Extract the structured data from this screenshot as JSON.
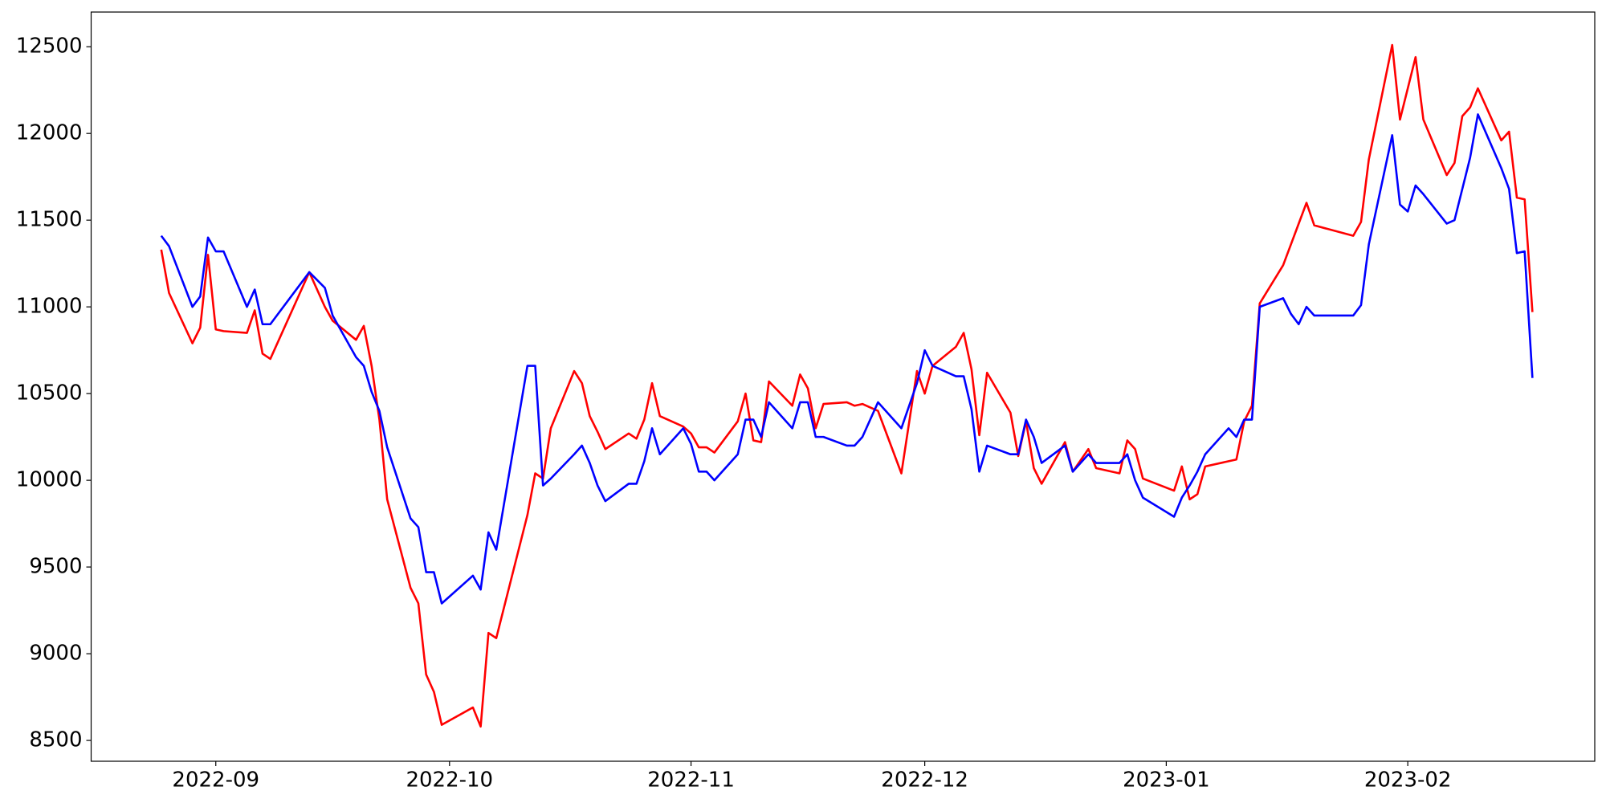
{
  "chart_data": {
    "type": "line",
    "x": [
      "2022-08-25",
      "2022-08-26",
      "2022-08-29",
      "2022-08-30",
      "2022-08-31",
      "2022-09-01",
      "2022-09-02",
      "2022-09-05",
      "2022-09-06",
      "2022-09-07",
      "2022-09-08",
      "2022-09-13",
      "2022-09-15",
      "2022-09-16",
      "2022-09-19",
      "2022-09-20",
      "2022-09-21",
      "2022-09-22",
      "2022-09-23",
      "2022-09-26",
      "2022-09-27",
      "2022-09-28",
      "2022-09-29",
      "2022-09-30",
      "2022-10-04",
      "2022-10-05",
      "2022-10-06",
      "2022-10-07",
      "2022-10-11",
      "2022-10-12",
      "2022-10-13",
      "2022-10-14",
      "2022-10-17",
      "2022-10-18",
      "2022-10-19",
      "2022-10-20",
      "2022-10-21",
      "2022-10-24",
      "2022-10-25",
      "2022-10-26",
      "2022-10-27",
      "2022-10-28",
      "2022-10-31",
      "2022-11-01",
      "2022-11-02",
      "2022-11-03",
      "2022-11-04",
      "2022-11-07",
      "2022-11-08",
      "2022-11-09",
      "2022-11-10",
      "2022-11-11",
      "2022-11-14",
      "2022-11-15",
      "2022-11-16",
      "2022-11-17",
      "2022-11-18",
      "2022-11-21",
      "2022-11-22",
      "2022-11-23",
      "2022-11-25",
      "2022-11-28",
      "2022-11-30",
      "2022-12-01",
      "2022-12-02",
      "2022-12-05",
      "2022-12-06",
      "2022-12-07",
      "2022-12-08",
      "2022-12-09",
      "2022-12-12",
      "2022-12-13",
      "2022-12-14",
      "2022-12-15",
      "2022-12-16",
      "2022-12-19",
      "2022-12-20",
      "2022-12-22",
      "2022-12-23",
      "2022-12-26",
      "2022-12-27",
      "2022-12-28",
      "2022-12-29",
      "2023-01-02",
      "2023-01-03",
      "2023-01-04",
      "2023-01-05",
      "2023-01-06",
      "2023-01-09",
      "2023-01-10",
      "2023-01-11",
      "2023-01-12",
      "2023-01-13",
      "2023-01-16",
      "2023-01-17",
      "2023-01-18",
      "2023-01-19",
      "2023-01-20",
      "2023-01-25",
      "2023-01-26",
      "2023-01-27",
      "2023-01-30",
      "2023-01-31",
      "2023-02-01",
      "2023-02-02",
      "2023-02-03",
      "2023-02-06",
      "2023-02-07",
      "2023-02-08",
      "2023-02-09",
      "2023-02-10",
      "2023-02-13",
      "2023-02-14",
      "2023-02-15",
      "2023-02-16",
      "2023-02-17"
    ],
    "series": [
      {
        "color": "#ff0000",
        "values": [
          11330,
          11080,
          10790,
          10880,
          11300,
          10870,
          10860,
          10850,
          10980,
          10730,
          10700,
          11200,
          11000,
          10920,
          10810,
          10890,
          10660,
          10350,
          9890,
          9380,
          9290,
          8880,
          8780,
          8590,
          8690,
          8580,
          9120,
          9090,
          9800,
          10040,
          10010,
          10300,
          10630,
          10560,
          10370,
          10280,
          10180,
          10270,
          10240,
          10350,
          10560,
          10370,
          10310,
          10270,
          10190,
          10190,
          10160,
          10340,
          10500,
          10230,
          10220,
          10570,
          10430,
          10610,
          10530,
          10300,
          10440,
          10450,
          10430,
          10440,
          10400,
          10040,
          10630,
          10500,
          10660,
          10770,
          10850,
          10640,
          10260,
          10620,
          10390,
          10140,
          10340,
          10070,
          9980,
          10220,
          10050,
          10180,
          10070,
          10040,
          10230,
          10180,
          10010,
          9940,
          10080,
          9890,
          9920,
          10080,
          10110,
          10120,
          10340,
          10430,
          11020,
          11240,
          11360,
          11480,
          11600,
          11470,
          11410,
          11490,
          11850,
          12510,
          12080,
          12260,
          12440,
          12080,
          11760,
          11830,
          12100,
          12150,
          12260,
          11960,
          12010,
          11630,
          11620,
          10970
        ]
      },
      {
        "color": "#0000ff",
        "values": [
          11410,
          11350,
          11000,
          11060,
          11400,
          11320,
          11320,
          11000,
          11100,
          10900,
          10900,
          11200,
          11110,
          10950,
          10710,
          10660,
          10510,
          10400,
          10190,
          9780,
          9730,
          9470,
          9470,
          9290,
          9450,
          9370,
          9700,
          9600,
          10660,
          10660,
          9970,
          10010,
          10150,
          10200,
          10100,
          9970,
          9880,
          9980,
          9980,
          10110,
          10300,
          10150,
          10300,
          10210,
          10050,
          10050,
          10000,
          10150,
          10350,
          10350,
          10250,
          10450,
          10300,
          10450,
          10450,
          10250,
          10250,
          10200,
          10200,
          10250,
          10450,
          10300,
          10560,
          10750,
          10660,
          10600,
          10600,
          10410,
          10050,
          10200,
          10150,
          10150,
          10350,
          10250,
          10100,
          10200,
          10050,
          10150,
          10100,
          10100,
          10150,
          10000,
          9900,
          9790,
          9900,
          9970,
          10050,
          10150,
          10300,
          10250,
          10350,
          10350,
          11000,
          11050,
          10960,
          10900,
          11000,
          10950,
          10950,
          11010,
          11360,
          11990,
          11590,
          11550,
          11700,
          11650,
          11480,
          11500,
          11680,
          11860,
          12110,
          11800,
          11680,
          11310,
          11320,
          10590
        ]
      }
    ],
    "xlim": [
      "2022-08-16",
      "2023-02-25"
    ],
    "xticks": [
      {
        "value": "2022-09-01",
        "label": "2022-09"
      },
      {
        "value": "2022-10-01",
        "label": "2022-10"
      },
      {
        "value": "2022-11-01",
        "label": "2022-11"
      },
      {
        "value": "2022-12-01",
        "label": "2022-12"
      },
      {
        "value": "2023-01-01",
        "label": "2023-01"
      },
      {
        "value": "2023-02-01",
        "label": "2023-02"
      }
    ],
    "ylim": [
      8380,
      12700
    ],
    "yticks": [
      8500,
      9000,
      9500,
      10000,
      10500,
      11000,
      11500,
      12000,
      12500
    ]
  }
}
